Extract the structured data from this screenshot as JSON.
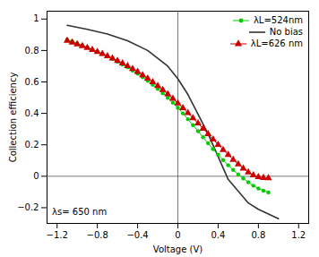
{
  "chart_data": {
    "type": "line",
    "xlabel": "Voltage (V)",
    "ylabel": "Collection efficiency",
    "xlim": [
      -1.3,
      1.3
    ],
    "ylim": [
      -0.3,
      1.05
    ],
    "xticks": [
      -1.2,
      -0.8,
      -0.4,
      0,
      0.4,
      0.8,
      1.2
    ],
    "yticks": [
      -0.2,
      0,
      0.2,
      0.4,
      0.6,
      0.8,
      1
    ],
    "grid": false,
    "legend": "upper right",
    "annotations": [
      {
        "text": "λs= 650 nm",
        "x": -1.25,
        "y": -0.245
      }
    ],
    "series": [
      {
        "name": "λL=524nm",
        "color": "#00cc00",
        "marker": "circle",
        "line_style": "solid",
        "x": [
          -1.1,
          -1.05,
          -1.0,
          -0.95,
          -0.9,
          -0.85,
          -0.8,
          -0.75,
          -0.7,
          -0.65,
          -0.6,
          -0.55,
          -0.5,
          -0.45,
          -0.4,
          -0.35,
          -0.3,
          -0.25,
          -0.2,
          -0.15,
          -0.1,
          -0.05,
          0.0,
          0.05,
          0.1,
          0.15,
          0.2,
          0.25,
          0.3,
          0.35,
          0.4,
          0.45,
          0.5,
          0.55,
          0.6,
          0.65,
          0.7,
          0.75,
          0.8,
          0.85,
          0.9
        ],
        "values": [
          0.87,
          0.858,
          0.845,
          0.833,
          0.82,
          0.806,
          0.792,
          0.778,
          0.762,
          0.746,
          0.729,
          0.711,
          0.693,
          0.673,
          0.652,
          0.63,
          0.607,
          0.582,
          0.556,
          0.528,
          0.499,
          0.468,
          0.435,
          0.4,
          0.363,
          0.325,
          0.287,
          0.248,
          0.21,
          0.173,
          0.137,
          0.103,
          0.07,
          0.04,
          0.012,
          -0.014,
          -0.038,
          -0.06,
          -0.078,
          -0.092,
          -0.103
        ]
      },
      {
        "name": "No bias",
        "color": "#333333",
        "marker": "none",
        "line_style": "solid",
        "x": [
          -1.1,
          -0.9,
          -0.7,
          -0.5,
          -0.3,
          -0.1,
          0.0,
          0.1,
          0.3,
          0.5,
          0.7,
          0.8,
          0.9,
          1.0
        ],
        "values": [
          0.96,
          0.935,
          0.905,
          0.862,
          0.8,
          0.7,
          0.62,
          0.52,
          0.27,
          -0.02,
          -0.17,
          -0.21,
          -0.24,
          -0.27
        ]
      },
      {
        "name": "λL=626 nm",
        "color": "#cc0000",
        "marker": "triangle",
        "line_style": "solid",
        "x": [
          -1.1,
          -1.05,
          -1.0,
          -0.95,
          -0.9,
          -0.85,
          -0.8,
          -0.75,
          -0.7,
          -0.65,
          -0.6,
          -0.55,
          -0.5,
          -0.45,
          -0.4,
          -0.35,
          -0.3,
          -0.25,
          -0.2,
          -0.15,
          -0.1,
          -0.05,
          0.0,
          0.05,
          0.1,
          0.15,
          0.2,
          0.25,
          0.3,
          0.35,
          0.4,
          0.45,
          0.5,
          0.55,
          0.6,
          0.65,
          0.7,
          0.75,
          0.8,
          0.85,
          0.9
        ],
        "values": [
          0.862,
          0.851,
          0.84,
          0.829,
          0.817,
          0.804,
          0.792,
          0.778,
          0.764,
          0.75,
          0.734,
          0.718,
          0.701,
          0.683,
          0.664,
          0.643,
          0.622,
          0.599,
          0.575,
          0.549,
          0.522,
          0.494,
          0.464,
          0.434,
          0.402,
          0.37,
          0.337,
          0.303,
          0.269,
          0.235,
          0.201,
          0.168,
          0.136,
          0.105,
          0.076,
          0.049,
          0.025,
          0.007,
          -0.005,
          -0.01,
          -0.012
        ]
      }
    ]
  }
}
